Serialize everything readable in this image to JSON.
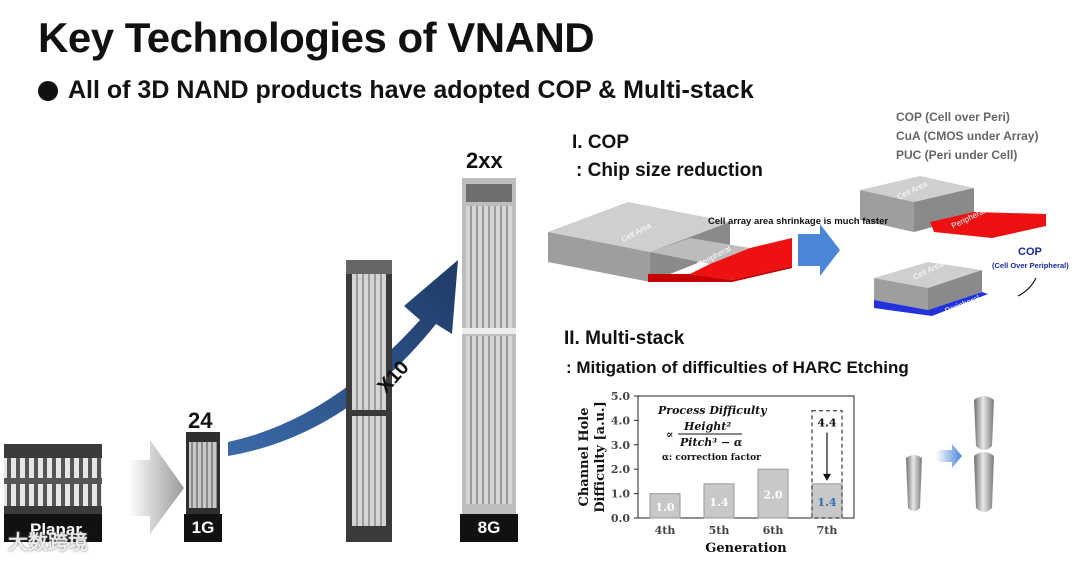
{
  "slide": {
    "title": "Key Technologies of VNAND",
    "subtitle": "All of 3D NAND products have adopted COP & Multi-stack"
  },
  "left_panel": {
    "planar_label": "Planar",
    "chip_1g_count": "24",
    "chip_1g_label": "1G",
    "arrow_label": "X10",
    "chip_8g_count": "2xx",
    "chip_8g_label": "8G",
    "watermark": "大数跨境"
  },
  "cop_section": {
    "heading": "I. COP",
    "subheading": ":  Chip size reduction",
    "legend": [
      "COP (Cell over Peri)",
      "CuA (CMOS under Array)",
      "PUC (Peri under Cell)"
    ],
    "shrink_note": "Cell array area shrinkage is much faster",
    "cell_area_label": "Cell Area",
    "peripheral_label": "Peripheral",
    "cop_label": "COP",
    "cop_full_label": "(Cell Over Peripheral)"
  },
  "multistack_section": {
    "heading": "II. Multi-stack",
    "subheading": ": Mitigation of difficulties of HARC Etching"
  },
  "chart_data": {
    "type": "bar",
    "title": "",
    "xlabel": "Generation",
    "ylabel": "Channel Hole Difficulty [a.u.]",
    "categories": [
      "4th",
      "5th",
      "6th",
      "7th"
    ],
    "values": [
      1.0,
      1.4,
      2.0,
      1.4
    ],
    "value_labels": [
      "1.0",
      "1.4",
      "2.0",
      "1.4"
    ],
    "projected": {
      "category": "7th",
      "value": 4.4,
      "label": "4.4"
    },
    "ylim": [
      0,
      5
    ],
    "yticks": [
      "0.0",
      "1.0",
      "2.0",
      "3.0",
      "4.0",
      "5.0"
    ],
    "formula_title": "Process Difficulty",
    "formula_numerator": "Height²",
    "formula_prefix": "∝",
    "formula_denominator": "Pitch³ − α",
    "formula_note": "α: correction factor",
    "colors": {
      "bar": "#c8c8c8",
      "bar_edge": "#9a9a9a",
      "highlight_text": "#2f6fb0",
      "bar_text": "#ffffff"
    }
  },
  "colors": {
    "peripheral": "#ee1111",
    "peripheral_bottom": "#2233dd",
    "cop_text": "#1a2a9a",
    "arrow_blue": "#4a87d6",
    "cell_gray": "#a9a9a9"
  }
}
